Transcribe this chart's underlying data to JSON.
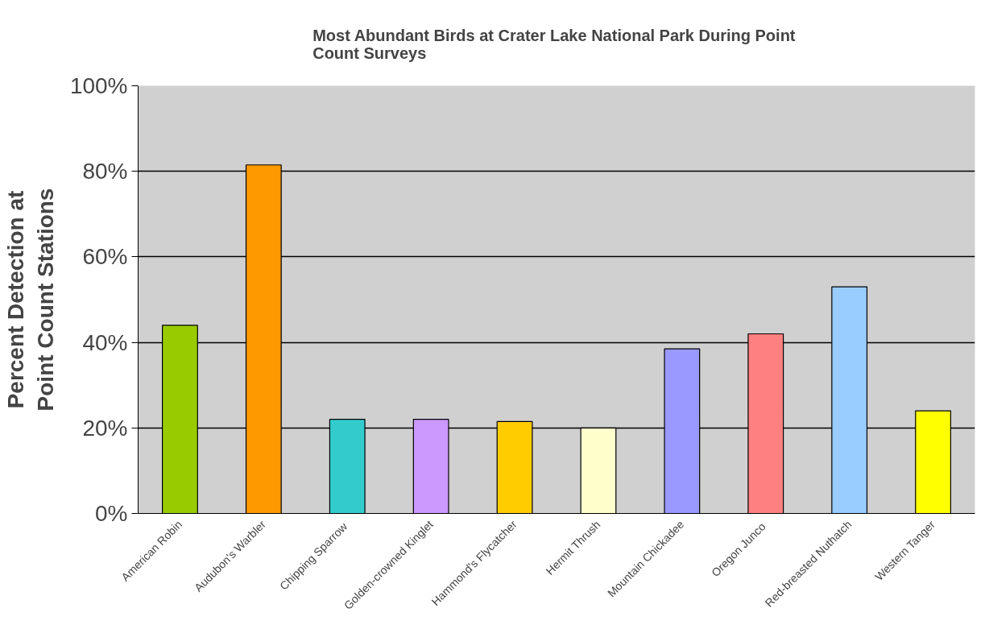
{
  "chart_data": {
    "type": "bar",
    "title": "Most Abundant Birds at Crater Lake National Park  During Point\nCount Surveys",
    "ylabel": "Percent Detection at\nPoint Count Stations",
    "categories": [
      "American Robin",
      "Audubon's Warbler",
      "Chipping  Sparrow",
      "Golden-crowned Kinglet",
      "Hammond's Flycatcher",
      "Hermit Thrush",
      "Mountain Chickadee",
      "Oregon  Junco",
      "Red-breasted Nuthatch",
      "Western Tanger"
    ],
    "values": [
      44,
      81.5,
      22,
      22,
      21.5,
      20,
      38.5,
      42,
      53,
      24
    ],
    "colors": [
      "#99cc00",
      "#ff9900",
      "#33cccc",
      "#cc99ff",
      "#ffcc00",
      "#ffffcc",
      "#9999ff",
      "#ff8080",
      "#99ccff",
      "#ffff00"
    ],
    "ylim": [
      0,
      100
    ],
    "yticks": [
      {
        "value": 0,
        "label": "0%"
      },
      {
        "value": 20,
        "label": "20%"
      },
      {
        "value": 40,
        "label": "40%"
      },
      {
        "value": 60,
        "label": "60%"
      },
      {
        "value": 80,
        "label": "80%"
      },
      {
        "value": 100,
        "label": "100%"
      }
    ],
    "grid": "y"
  }
}
